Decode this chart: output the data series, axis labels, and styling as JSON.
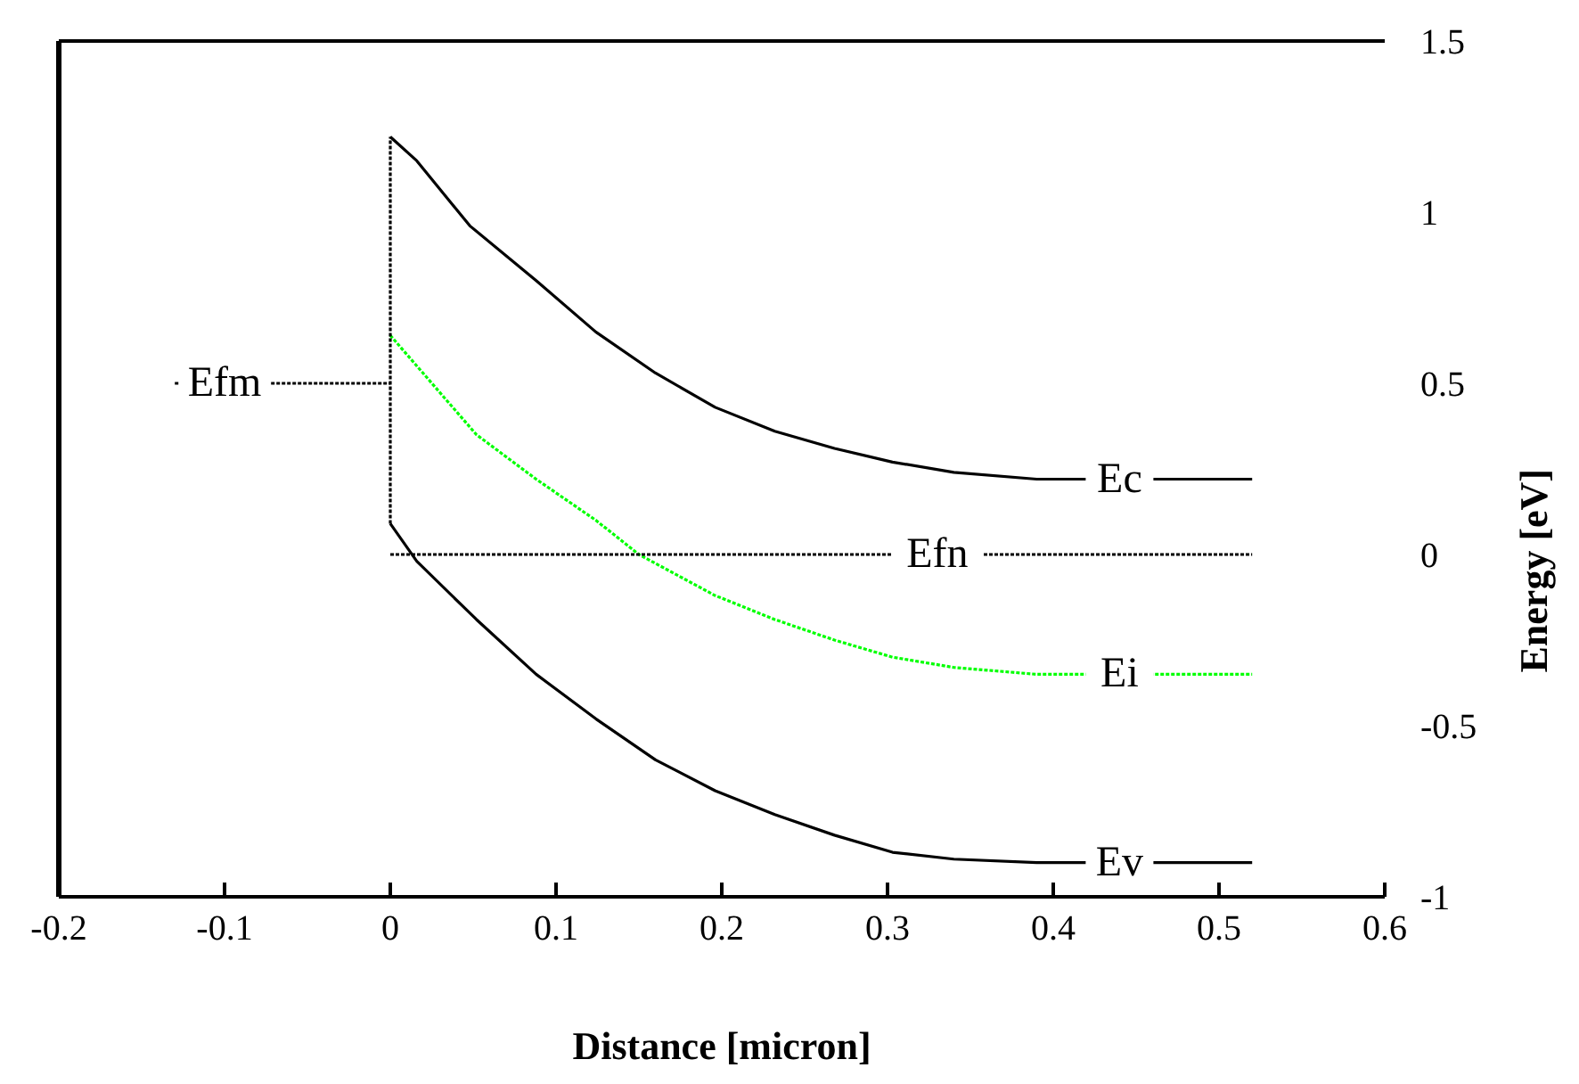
{
  "chart_data": {
    "type": "line",
    "xlabel": "Distance [micron]",
    "ylabel": "Energy [eV]",
    "xlim": [
      -0.2,
      0.6
    ],
    "ylim": [
      -1,
      1.5
    ],
    "xticks": [
      -0.2,
      -0.1,
      0,
      0.1,
      0.2,
      0.3,
      0.4,
      0.5,
      0.6
    ],
    "yticks": [
      -1,
      -0.5,
      0,
      0.5,
      1,
      1.5
    ],
    "series": [
      {
        "color": "#000000",
        "line_style": "solid",
        "x": [
          0,
          0.016,
          0.048,
          0.088,
          0.124,
          0.16,
          0.196,
          0.232,
          0.268,
          0.303,
          0.34,
          0.39,
          0.52
        ],
        "values": [
          1.22,
          1.15,
          0.96,
          0.8,
          0.65,
          0.53,
          0.43,
          0.36,
          0.31,
          0.27,
          0.24,
          0.22,
          0.22
        ]
      },
      {
        "color": "#00ff00",
        "line_style": "dotted",
        "x": [
          0,
          0.052,
          0.088,
          0.124,
          0.15,
          0.196,
          0.232,
          0.268,
          0.303,
          0.34,
          0.39,
          0.52
        ],
        "values": [
          0.64,
          0.35,
          0.22,
          0.1,
          0,
          -0.12,
          -0.19,
          -0.25,
          -0.3,
          -0.33,
          -0.35,
          -0.35
        ]
      },
      {
        "color": "#000000",
        "line_style": "solid",
        "x": [
          0,
          0.016,
          0.052,
          0.088,
          0.124,
          0.16,
          0.196,
          0.232,
          0.268,
          0.303,
          0.34,
          0.39,
          0.52
        ],
        "values": [
          0.09,
          -0.02,
          -0.19,
          -0.35,
          -0.48,
          -0.6,
          -0.69,
          -0.76,
          -0.82,
          -0.87,
          -0.89,
          -0.9,
          -0.9
        ]
      },
      {
        "color": "#000000",
        "line_style": "dotted",
        "x": [
          0,
          0.52
        ],
        "values": [
          0,
          0
        ]
      },
      {
        "color": "#000000",
        "line_style": "dotted",
        "x": [
          -0.13,
          0
        ],
        "values": [
          0.5,
          0.5
        ]
      },
      {
        "color": "#000000",
        "line_style": "dotted",
        "x": [
          0,
          0
        ],
        "values": [
          0.09,
          1.22
        ]
      }
    ],
    "annotations": [
      {
        "text": "Ec",
        "x": 0.44,
        "y": 0.22
      },
      {
        "text": "Ei",
        "x": 0.44,
        "y": -0.35
      },
      {
        "text": "Ev",
        "x": 0.44,
        "y": -0.9
      },
      {
        "text": "Efn",
        "x": 0.33,
        "y": 0
      },
      {
        "text": "Efm",
        "x": -0.1,
        "y": 0.5
      }
    ]
  }
}
